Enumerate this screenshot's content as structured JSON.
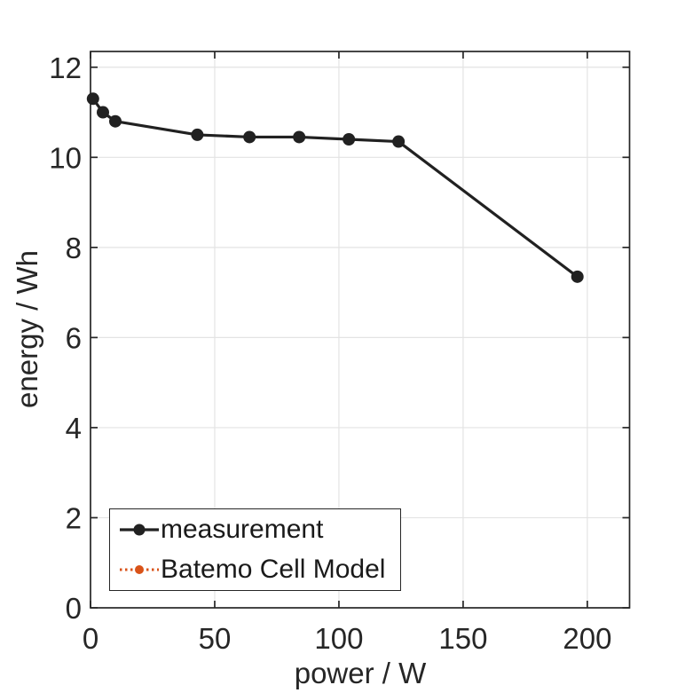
{
  "figure": {
    "background": "#ffffff"
  },
  "chart_data": {
    "type": "line",
    "title": "",
    "xlabel": "power / W",
    "ylabel": "energy / Wh",
    "xlim": [
      0,
      217
    ],
    "ylim": [
      0,
      12.35
    ],
    "xticks": [
      0,
      50,
      100,
      150,
      200
    ],
    "yticks": [
      0,
      2,
      4,
      6,
      8,
      10,
      12
    ],
    "grid": true,
    "grid_color": "#e3e3e3",
    "axis_color": "#262626",
    "tick_label_color": "#262626",
    "legend_position": "bottom-left",
    "series": [
      {
        "name": "measurement",
        "color": "#212121",
        "line_style": "solid",
        "marker": "filled-circle",
        "x": [
          1,
          5,
          10,
          43,
          64,
          84,
          104,
          124,
          196
        ],
        "y": [
          11.3,
          11.0,
          10.8,
          10.5,
          10.45,
          10.45,
          10.4,
          10.35,
          7.35
        ],
        "visible_in_plot": true
      },
      {
        "name": "Batemo Cell Model",
        "color": "#D95319",
        "line_style": "dotted",
        "marker": "filled-circle",
        "x": [],
        "y": [],
        "visible_in_plot": false,
        "note": "series appears only in legend; curve occluded by measurement line"
      }
    ]
  }
}
